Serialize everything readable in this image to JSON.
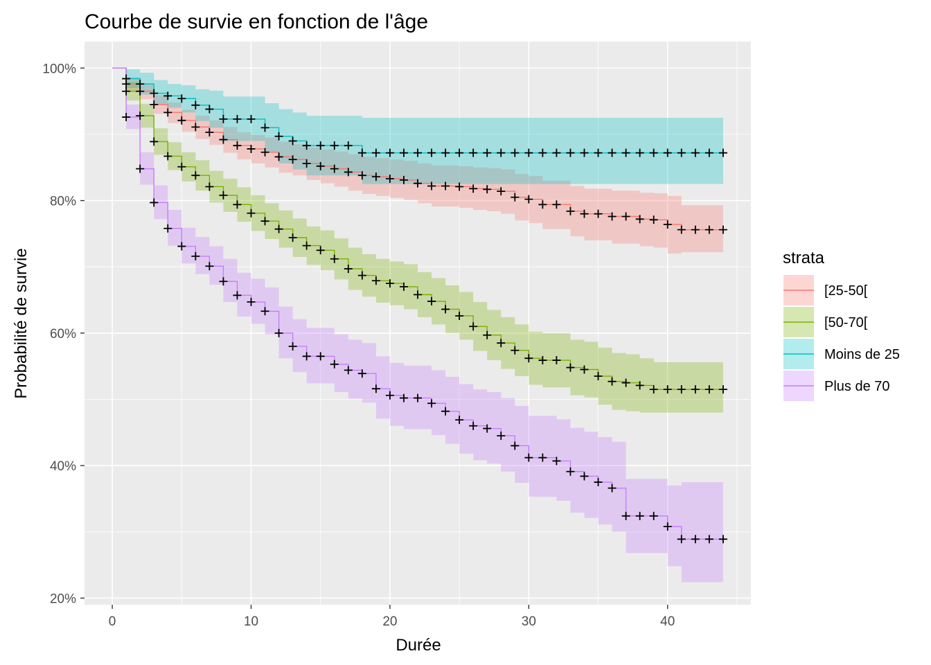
{
  "chart_data": {
    "type": "line",
    "subtype": "kaplan-meier step survival curves with confidence bands and censor marks",
    "title": "Courbe de survie en fonction de l'âge",
    "xlabel": "Durée",
    "ylabel": "Probabilité de survie",
    "xlim": [
      -2,
      46
    ],
    "ylim": [
      0.19,
      1.04
    ],
    "x_ticks": [
      0,
      10,
      20,
      30,
      40
    ],
    "x_tick_labels": [
      "0",
      "10",
      "20",
      "30",
      "40"
    ],
    "y_ticks": [
      0.2,
      0.4,
      0.6,
      0.8,
      1.0
    ],
    "y_tick_labels": [
      "20%",
      "40%",
      "60%",
      "80%",
      "100%"
    ],
    "grid": true,
    "legend": {
      "title": "strata",
      "placement": "right"
    },
    "series": [
      {
        "name": "[25-50[",
        "color": "#F8766D",
        "x": [
          0,
          1,
          2,
          3,
          4,
          5,
          6,
          7,
          8,
          9,
          10,
          11,
          12,
          13,
          14,
          15,
          16,
          17,
          18,
          19,
          20,
          21,
          22,
          23,
          24,
          25,
          26,
          27,
          28,
          29,
          30,
          31,
          32,
          33,
          34,
          35,
          36,
          37,
          38,
          39,
          40,
          41,
          42,
          43,
          44
        ],
        "y": [
          1.0,
          0.976,
          0.965,
          0.945,
          0.933,
          0.921,
          0.911,
          0.903,
          0.892,
          0.883,
          0.878,
          0.873,
          0.866,
          0.862,
          0.856,
          0.852,
          0.848,
          0.843,
          0.838,
          0.836,
          0.833,
          0.831,
          0.826,
          0.822,
          0.822,
          0.821,
          0.818,
          0.817,
          0.814,
          0.805,
          0.802,
          0.794,
          0.794,
          0.784,
          0.78,
          0.78,
          0.776,
          0.776,
          0.772,
          0.771,
          0.764,
          0.756,
          0.756,
          0.756,
          0.756
        ],
        "lower": [
          1.0,
          0.966,
          0.953,
          0.931,
          0.917,
          0.904,
          0.893,
          0.884,
          0.872,
          0.862,
          0.856,
          0.85,
          0.842,
          0.838,
          0.831,
          0.826,
          0.821,
          0.815,
          0.81,
          0.807,
          0.804,
          0.801,
          0.796,
          0.791,
          0.791,
          0.789,
          0.786,
          0.784,
          0.78,
          0.77,
          0.766,
          0.757,
          0.757,
          0.746,
          0.74,
          0.74,
          0.735,
          0.735,
          0.731,
          0.729,
          0.72,
          0.722,
          0.722,
          0.722,
          0.722
        ],
        "upper": [
          1.0,
          0.986,
          0.977,
          0.959,
          0.948,
          0.937,
          0.928,
          0.921,
          0.911,
          0.903,
          0.899,
          0.895,
          0.889,
          0.885,
          0.88,
          0.877,
          0.874,
          0.87,
          0.866,
          0.864,
          0.862,
          0.86,
          0.856,
          0.853,
          0.853,
          0.852,
          0.85,
          0.849,
          0.847,
          0.84,
          0.837,
          0.83,
          0.83,
          0.822,
          0.818,
          0.818,
          0.815,
          0.815,
          0.812,
          0.811,
          0.807,
          0.793,
          0.793,
          0.793,
          0.793
        ]
      },
      {
        "name": "[50-70[",
        "color": "#7CAE00",
        "x": [
          0,
          1,
          2,
          3,
          4,
          5,
          6,
          7,
          8,
          9,
          10,
          11,
          12,
          13,
          14,
          15,
          16,
          17,
          18,
          19,
          20,
          21,
          22,
          23,
          24,
          25,
          26,
          27,
          28,
          29,
          30,
          31,
          32,
          33,
          34,
          35,
          36,
          37,
          38,
          39,
          40,
          41,
          42,
          43,
          44
        ],
        "y": [
          1.0,
          0.965,
          0.928,
          0.889,
          0.867,
          0.851,
          0.838,
          0.821,
          0.808,
          0.794,
          0.781,
          0.769,
          0.757,
          0.744,
          0.732,
          0.725,
          0.712,
          0.697,
          0.687,
          0.679,
          0.675,
          0.67,
          0.658,
          0.648,
          0.636,
          0.626,
          0.61,
          0.597,
          0.585,
          0.574,
          0.562,
          0.559,
          0.559,
          0.548,
          0.545,
          0.535,
          0.527,
          0.525,
          0.521,
          0.515,
          0.515,
          0.515,
          0.515,
          0.515,
          0.515
        ],
        "lower": [
          1.0,
          0.951,
          0.91,
          0.869,
          0.846,
          0.829,
          0.815,
          0.797,
          0.783,
          0.768,
          0.754,
          0.742,
          0.729,
          0.715,
          0.703,
          0.695,
          0.681,
          0.665,
          0.655,
          0.646,
          0.642,
          0.636,
          0.624,
          0.613,
          0.6,
          0.59,
          0.573,
          0.559,
          0.546,
          0.535,
          0.522,
          0.518,
          0.518,
          0.506,
          0.503,
          0.492,
          0.484,
          0.482,
          0.48,
          0.48,
          0.48,
          0.48,
          0.48,
          0.48,
          0.48
        ],
        "upper": [
          1.0,
          0.979,
          0.946,
          0.909,
          0.888,
          0.873,
          0.861,
          0.845,
          0.833,
          0.82,
          0.808,
          0.796,
          0.785,
          0.773,
          0.761,
          0.755,
          0.743,
          0.729,
          0.719,
          0.712,
          0.708,
          0.704,
          0.692,
          0.683,
          0.672,
          0.662,
          0.647,
          0.635,
          0.624,
          0.613,
          0.602,
          0.6,
          0.6,
          0.59,
          0.587,
          0.578,
          0.57,
          0.568,
          0.562,
          0.556,
          0.556,
          0.556,
          0.556,
          0.556,
          0.556
        ]
      },
      {
        "name": "Moins de 25",
        "color": "#00BFC4",
        "x": [
          0,
          1,
          2,
          3,
          4,
          5,
          6,
          7,
          8,
          9,
          10,
          11,
          12,
          13,
          14,
          15,
          16,
          17,
          18,
          19,
          20,
          21,
          22,
          23,
          24,
          25,
          26,
          27,
          28,
          29,
          30,
          31,
          32,
          33,
          34,
          35,
          36,
          37,
          38,
          39,
          40,
          41,
          42,
          43,
          44
        ],
        "y": [
          1.0,
          0.984,
          0.976,
          0.962,
          0.958,
          0.954,
          0.944,
          0.938,
          0.923,
          0.923,
          0.923,
          0.91,
          0.897,
          0.89,
          0.883,
          0.883,
          0.883,
          0.883,
          0.872,
          0.872,
          0.872,
          0.872,
          0.872,
          0.872,
          0.872,
          0.872,
          0.872,
          0.872,
          0.872,
          0.872,
          0.872,
          0.872,
          0.872,
          0.872,
          0.872,
          0.872,
          0.872,
          0.872,
          0.872,
          0.872,
          0.872,
          0.872,
          0.872,
          0.872,
          0.872
        ],
        "lower": [
          1.0,
          0.97,
          0.96,
          0.945,
          0.94,
          0.933,
          0.92,
          0.91,
          0.89,
          0.89,
          0.89,
          0.873,
          0.856,
          0.847,
          0.838,
          0.838,
          0.838,
          0.838,
          0.825,
          0.825,
          0.825,
          0.825,
          0.825,
          0.825,
          0.825,
          0.825,
          0.825,
          0.825,
          0.825,
          0.825,
          0.825,
          0.825,
          0.825,
          0.825,
          0.825,
          0.825,
          0.825,
          0.825,
          0.825,
          0.825,
          0.825,
          0.825,
          0.825,
          0.825,
          0.825
        ],
        "upper": [
          1.0,
          0.998,
          0.993,
          0.982,
          0.976,
          0.974,
          0.968,
          0.966,
          0.957,
          0.957,
          0.957,
          0.947,
          0.938,
          0.933,
          0.928,
          0.928,
          0.928,
          0.928,
          0.925,
          0.925,
          0.925,
          0.925,
          0.925,
          0.925,
          0.925,
          0.925,
          0.925,
          0.925,
          0.925,
          0.925,
          0.925,
          0.925,
          0.925,
          0.925,
          0.925,
          0.925,
          0.925,
          0.925,
          0.925,
          0.925,
          0.925,
          0.925,
          0.925,
          0.925,
          0.925
        ]
      },
      {
        "name": "Plus de 70",
        "color": "#C77CFF",
        "x": [
          0,
          1,
          2,
          3,
          4,
          5,
          6,
          7,
          8,
          9,
          10,
          11,
          12,
          13,
          14,
          15,
          16,
          17,
          18,
          19,
          20,
          21,
          22,
          23,
          24,
          25,
          26,
          27,
          28,
          29,
          30,
          31,
          32,
          33,
          34,
          35,
          36,
          37,
          38,
          39,
          40,
          41,
          42,
          43,
          44
        ],
        "y": [
          1.0,
          0.926,
          0.848,
          0.797,
          0.758,
          0.731,
          0.716,
          0.701,
          0.678,
          0.657,
          0.647,
          0.633,
          0.6,
          0.58,
          0.565,
          0.565,
          0.553,
          0.544,
          0.539,
          0.516,
          0.506,
          0.502,
          0.502,
          0.494,
          0.482,
          0.469,
          0.46,
          0.456,
          0.445,
          0.43,
          0.412,
          0.412,
          0.407,
          0.391,
          0.384,
          0.375,
          0.366,
          0.324,
          0.324,
          0.324,
          0.308,
          0.289,
          0.289,
          0.289,
          0.289
        ],
        "lower": [
          1.0,
          0.908,
          0.824,
          0.772,
          0.732,
          0.705,
          0.689,
          0.673,
          0.647,
          0.625,
          0.614,
          0.598,
          0.562,
          0.541,
          0.524,
          0.524,
          0.511,
          0.501,
          0.495,
          0.471,
          0.46,
          0.455,
          0.455,
          0.446,
          0.433,
          0.418,
          0.408,
          0.403,
          0.391,
          0.374,
          0.353,
          0.353,
          0.347,
          0.329,
          0.321,
          0.311,
          0.3,
          0.268,
          0.268,
          0.268,
          0.248,
          0.224,
          0.224,
          0.224,
          0.224
        ],
        "upper": [
          1.0,
          0.945,
          0.873,
          0.823,
          0.786,
          0.759,
          0.745,
          0.731,
          0.712,
          0.691,
          0.682,
          0.669,
          0.64,
          0.621,
          0.608,
          0.608,
          0.598,
          0.59,
          0.585,
          0.565,
          0.555,
          0.551,
          0.551,
          0.544,
          0.534,
          0.523,
          0.515,
          0.511,
          0.502,
          0.49,
          0.475,
          0.475,
          0.47,
          0.457,
          0.451,
          0.443,
          0.436,
          0.38,
          0.38,
          0.38,
          0.37,
          0.375,
          0.375,
          0.375,
          0.375
        ]
      }
    ]
  }
}
